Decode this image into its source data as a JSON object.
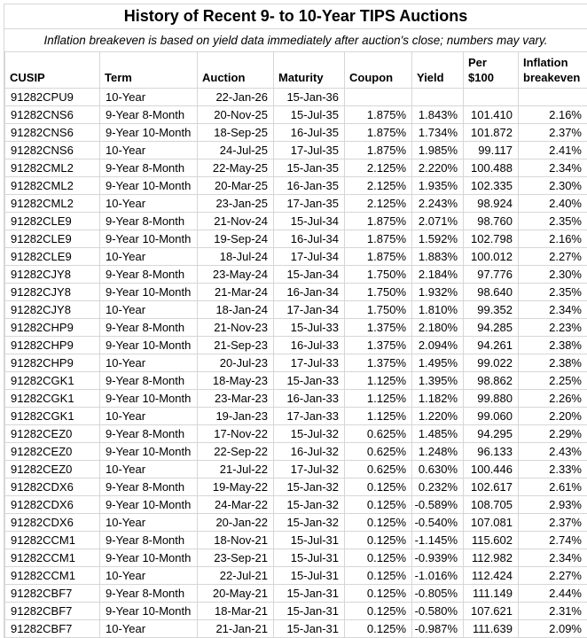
{
  "theme": {
    "grid_color": "#d6d6d6",
    "text_color": "#000000",
    "background": "#ffffff"
  },
  "chart_data": {
    "type": "table",
    "title": "History of Recent 9- to 10-Year TIPS Auctions",
    "subtitle": "Inflation breakeven is based on yield data immediately after auction's close; numbers may vary.",
    "columns": [
      "CUSIP",
      "Term",
      "Auction",
      "Maturity",
      "Coupon",
      "Yield",
      "Per $100",
      "Inflation breakeven"
    ],
    "rows": [
      [
        "91282CPU9",
        "10-Year",
        "22-Jan-26",
        "15-Jan-36",
        "",
        "",
        "",
        ""
      ],
      [
        "91282CNS6",
        "9-Year 8-Month",
        "20-Nov-25",
        "15-Jul-35",
        "1.875%",
        "1.843%",
        "101.410",
        "2.16%"
      ],
      [
        "91282CNS6",
        "9-Year 10-Month",
        "18-Sep-25",
        "16-Jul-35",
        "1.875%",
        "1.734%",
        "101.872",
        "2.37%"
      ],
      [
        "91282CNS6",
        "10-Year",
        "24-Jul-25",
        "17-Jul-35",
        "1.875%",
        "1.985%",
        "99.117",
        "2.41%"
      ],
      [
        "91282CML2",
        "9-Year 8-Month",
        "22-May-25",
        "15-Jan-35",
        "2.125%",
        "2.220%",
        "100.488",
        "2.34%"
      ],
      [
        "91282CML2",
        "9-Year 10-Month",
        "20-Mar-25",
        "16-Jan-35",
        "2.125%",
        "1.935%",
        "102.335",
        "2.30%"
      ],
      [
        "91282CML2",
        "10-Year",
        "23-Jan-25",
        "17-Jan-35",
        "2.125%",
        "2.243%",
        "98.924",
        "2.40%"
      ],
      [
        "91282CLE9",
        "9-Year 8-Month",
        "21-Nov-24",
        "15-Jul-34",
        "1.875%",
        "2.071%",
        "98.760",
        "2.35%"
      ],
      [
        "91282CLE9",
        "9-Year 10-Month",
        "19-Sep-24",
        "16-Jul-34",
        "1.875%",
        "1.592%",
        "102.798",
        "2.16%"
      ],
      [
        "91282CLE9",
        "10-Year",
        "18-Jul-24",
        "17-Jul-34",
        "1.875%",
        "1.883%",
        "100.012",
        "2.27%"
      ],
      [
        "91282CJY8",
        "9-Year 8-Month",
        "23-May-24",
        "15-Jan-34",
        "1.750%",
        "2.184%",
        "97.776",
        "2.30%"
      ],
      [
        "91282CJY8",
        "9-Year 10-Month",
        "21-Mar-24",
        "16-Jan-34",
        "1.750%",
        "1.932%",
        "98.640",
        "2.35%"
      ],
      [
        "91282CJY8",
        "10-Year",
        "18-Jan-24",
        "17-Jan-34",
        "1.750%",
        "1.810%",
        "99.352",
        "2.34%"
      ],
      [
        "91282CHP9",
        "9-Year 8-Month",
        "21-Nov-23",
        "15-Jul-33",
        "1.375%",
        "2.180%",
        "94.285",
        "2.23%"
      ],
      [
        "91282CHP9",
        "9-Year 10-Month",
        "21-Sep-23",
        "16-Jul-33",
        "1.375%",
        "2.094%",
        "94.261",
        "2.38%"
      ],
      [
        "91282CHP9",
        "10-Year",
        "20-Jul-23",
        "17-Jul-33",
        "1.375%",
        "1.495%",
        "99.022",
        "2.38%"
      ],
      [
        "91282CGK1",
        "9-Year 8-Month",
        "18-May-23",
        "15-Jan-33",
        "1.125%",
        "1.395%",
        "98.862",
        "2.25%"
      ],
      [
        "91282CGK1",
        "9-Year 10-Month",
        "23-Mar-23",
        "16-Jan-33",
        "1.125%",
        "1.182%",
        "99.880",
        "2.26%"
      ],
      [
        "91282CGK1",
        "10-Year",
        "19-Jan-23",
        "17-Jan-33",
        "1.125%",
        "1.220%",
        "99.060",
        "2.20%"
      ],
      [
        "91282CEZ0",
        "9-Year 8-Month",
        "17-Nov-22",
        "15-Jul-32",
        "0.625%",
        "1.485%",
        "94.295",
        "2.29%"
      ],
      [
        "91282CEZ0",
        "9-Year 10-Month",
        "22-Sep-22",
        "16-Jul-32",
        "0.625%",
        "1.248%",
        "96.133",
        "2.43%"
      ],
      [
        "91282CEZ0",
        "10-Year",
        "21-Jul-22",
        "17-Jul-32",
        "0.625%",
        "0.630%",
        "100.446",
        "2.33%"
      ],
      [
        "91282CDX6",
        "9-Year 8-Month",
        "19-May-22",
        "15-Jan-32",
        "0.125%",
        "0.232%",
        "102.617",
        "2.61%"
      ],
      [
        "91282CDX6",
        "9-Year 10-Month",
        "24-Mar-22",
        "15-Jan-32",
        "0.125%",
        "-0.589%",
        "108.705",
        "2.93%"
      ],
      [
        "91282CDX6",
        "10-Year",
        "20-Jan-22",
        "15-Jan-32",
        "0.125%",
        "-0.540%",
        "107.081",
        "2.37%"
      ],
      [
        "91282CCM1",
        "9-Year 8-Month",
        "18-Nov-21",
        "15-Jul-31",
        "0.125%",
        "-1.145%",
        "115.602",
        "2.74%"
      ],
      [
        "91282CCM1",
        "9-Year 10-Month",
        "23-Sep-21",
        "15-Jul-31",
        "0.125%",
        "-0.939%",
        "112.982",
        "2.34%"
      ],
      [
        "91282CCM1",
        "10-Year",
        "22-Jul-21",
        "15-Jul-31",
        "0.125%",
        "-1.016%",
        "112.424",
        "2.27%"
      ],
      [
        "91282CBF7",
        "9-Year 8-Month",
        "20-May-21",
        "15-Jan-31",
        "0.125%",
        "-0.805%",
        "111.149",
        "2.44%"
      ],
      [
        "91282CBF7",
        "9-Year 10-Month",
        "18-Mar-21",
        "15-Jan-31",
        "0.125%",
        "-0.580%",
        "107.621",
        "2.31%"
      ],
      [
        "91282CBF7",
        "10-Year",
        "21-Jan-21",
        "15-Jan-31",
        "0.125%",
        "-0.987%",
        "111.639",
        "2.09%"
      ]
    ]
  }
}
